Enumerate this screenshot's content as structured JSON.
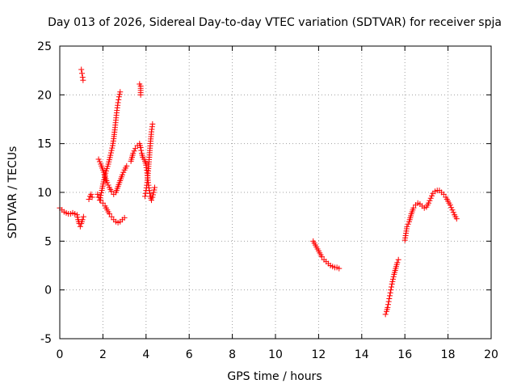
{
  "chart_data": {
    "type": "scatter",
    "title": "Day 013 of 2026, Sidereal Day-to-day VTEC variation (SDTVAR) for receiver spja",
    "xlabel": "GPS time / hours",
    "ylabel": "SDTVAR / TECUs",
    "xlim": [
      0,
      20
    ],
    "ylim": [
      -5,
      25
    ],
    "xticks": [
      0,
      2,
      4,
      6,
      8,
      10,
      12,
      14,
      16,
      18,
      20
    ],
    "yticks": [
      -5,
      0,
      5,
      10,
      15,
      20,
      25
    ],
    "xtick_labels": [
      "0",
      "2",
      "4",
      "6",
      "8",
      "10",
      "12",
      "14",
      "16",
      "18",
      "20"
    ],
    "ytick_labels": [
      "-5",
      "0",
      "5",
      "10",
      "15",
      "20",
      "25"
    ],
    "grid": true,
    "marker": "+",
    "color": "#ff0000",
    "series": [
      {
        "name": "seg-a",
        "points": [
          [
            0.0,
            8.4
          ],
          [
            0.1,
            8.2
          ],
          [
            0.2,
            8.0
          ],
          [
            0.3,
            7.9
          ],
          [
            0.4,
            7.8
          ],
          [
            0.5,
            7.8
          ],
          [
            0.6,
            7.9
          ],
          [
            0.7,
            7.8
          ],
          [
            0.8,
            7.7
          ],
          [
            0.85,
            7.2
          ],
          [
            0.9,
            6.8
          ],
          [
            0.95,
            6.5
          ],
          [
            1.0,
            6.8
          ],
          [
            1.05,
            7.2
          ],
          [
            1.1,
            7.5
          ]
        ]
      },
      {
        "name": "seg-b",
        "points": [
          [
            1.0,
            22.6
          ],
          [
            1.03,
            22.2
          ],
          [
            1.06,
            21.8
          ],
          [
            1.08,
            21.5
          ]
        ]
      },
      {
        "name": "seg-c",
        "points": [
          [
            1.35,
            9.3
          ],
          [
            1.4,
            9.6
          ],
          [
            1.45,
            9.8
          ],
          [
            1.5,
            9.5
          ]
        ]
      },
      {
        "name": "seg-d",
        "points": [
          [
            1.75,
            9.8
          ],
          [
            1.8,
            9.5
          ],
          [
            1.9,
            9.2
          ],
          [
            2.0,
            8.9
          ],
          [
            2.1,
            8.6
          ],
          [
            2.2,
            8.2
          ],
          [
            2.3,
            7.8
          ],
          [
            2.4,
            7.5
          ],
          [
            2.5,
            7.2
          ],
          [
            2.6,
            7.0
          ],
          [
            2.7,
            6.9
          ],
          [
            2.8,
            7.0
          ],
          [
            2.9,
            7.2
          ],
          [
            3.0,
            7.4
          ]
        ]
      },
      {
        "name": "seg-e",
        "points": [
          [
            1.8,
            13.4
          ],
          [
            1.9,
            12.9
          ],
          [
            2.0,
            12.3
          ],
          [
            2.1,
            11.6
          ],
          [
            2.2,
            11.0
          ],
          [
            2.3,
            10.5
          ],
          [
            2.4,
            10.1
          ],
          [
            2.5,
            9.8
          ],
          [
            2.6,
            10.0
          ],
          [
            2.7,
            10.6
          ],
          [
            2.8,
            11.2
          ],
          [
            2.9,
            11.8
          ],
          [
            3.0,
            12.3
          ],
          [
            3.1,
            12.7
          ]
        ]
      },
      {
        "name": "seg-f",
        "points": [
          [
            1.85,
            9.2
          ],
          [
            1.95,
            10.2
          ],
          [
            2.05,
            11.3
          ],
          [
            2.15,
            12.2
          ],
          [
            2.25,
            12.9
          ],
          [
            2.35,
            13.8
          ],
          [
            2.45,
            14.8
          ],
          [
            2.5,
            15.5
          ],
          [
            2.55,
            16.4
          ],
          [
            2.6,
            17.4
          ],
          [
            2.65,
            18.4
          ],
          [
            2.7,
            19.2
          ],
          [
            2.75,
            19.8
          ],
          [
            2.8,
            20.3
          ]
        ]
      },
      {
        "name": "seg-g",
        "points": [
          [
            3.3,
            13.2
          ],
          [
            3.4,
            14.0
          ],
          [
            3.5,
            14.5
          ],
          [
            3.6,
            14.8
          ],
          [
            3.7,
            15.0
          ],
          [
            3.75,
            14.6
          ],
          [
            3.8,
            14.0
          ],
          [
            3.85,
            13.6
          ],
          [
            3.9,
            13.4
          ],
          [
            3.95,
            13.2
          ],
          [
            4.0,
            12.8
          ],
          [
            4.05,
            12.0
          ],
          [
            4.1,
            11.0
          ],
          [
            4.15,
            10.2
          ],
          [
            4.2,
            9.6
          ],
          [
            4.25,
            9.2
          ],
          [
            4.3,
            9.5
          ],
          [
            4.35,
            10.0
          ],
          [
            4.4,
            10.5
          ]
        ]
      },
      {
        "name": "seg-h",
        "points": [
          [
            3.7,
            21.1
          ],
          [
            3.75,
            20.9
          ],
          [
            3.75,
            20.0
          ]
        ]
      },
      {
        "name": "seg-i",
        "points": [
          [
            3.95,
            9.6
          ],
          [
            4.0,
            10.2
          ],
          [
            4.05,
            11.0
          ],
          [
            4.1,
            12.2
          ],
          [
            4.15,
            13.6
          ],
          [
            4.2,
            15.0
          ],
          [
            4.25,
            16.2
          ],
          [
            4.3,
            17.0
          ]
        ]
      },
      {
        "name": "seg-j",
        "points": [
          [
            11.75,
            5.0
          ],
          [
            11.85,
            4.6
          ],
          [
            11.95,
            4.2
          ],
          [
            12.05,
            3.8
          ],
          [
            12.15,
            3.4
          ],
          [
            12.25,
            3.1
          ],
          [
            12.35,
            2.9
          ],
          [
            12.45,
            2.7
          ],
          [
            12.55,
            2.5
          ],
          [
            12.65,
            2.4
          ],
          [
            12.75,
            2.3
          ],
          [
            12.85,
            2.3
          ],
          [
            12.95,
            2.2
          ]
        ]
      },
      {
        "name": "seg-k",
        "points": [
          [
            15.1,
            -2.5
          ],
          [
            15.15,
            -2.2
          ],
          [
            15.2,
            -1.8
          ],
          [
            15.25,
            -1.2
          ],
          [
            15.3,
            -0.6
          ],
          [
            15.35,
            0.0
          ],
          [
            15.4,
            0.6
          ],
          [
            15.45,
            1.1
          ],
          [
            15.5,
            1.6
          ],
          [
            15.55,
            2.0
          ],
          [
            15.6,
            2.4
          ],
          [
            15.65,
            2.8
          ],
          [
            15.7,
            3.1
          ]
        ]
      },
      {
        "name": "seg-l",
        "points": [
          [
            16.0,
            5.1
          ],
          [
            16.05,
            5.8
          ],
          [
            16.1,
            6.5
          ],
          [
            16.2,
            7.0
          ],
          [
            16.3,
            7.8
          ],
          [
            16.4,
            8.4
          ],
          [
            16.5,
            8.7
          ],
          [
            16.6,
            8.9
          ],
          [
            16.7,
            8.8
          ],
          [
            16.8,
            8.6
          ],
          [
            16.9,
            8.4
          ],
          [
            17.0,
            8.5
          ],
          [
            17.1,
            8.9
          ],
          [
            17.2,
            9.4
          ],
          [
            17.3,
            9.9
          ],
          [
            17.4,
            10.1
          ],
          [
            17.5,
            10.2
          ],
          [
            17.6,
            10.2
          ],
          [
            17.7,
            10.0
          ],
          [
            17.8,
            9.8
          ],
          [
            17.9,
            9.5
          ],
          [
            18.0,
            9.1
          ],
          [
            18.1,
            8.7
          ],
          [
            18.2,
            8.2
          ],
          [
            18.3,
            7.7
          ],
          [
            18.4,
            7.3
          ]
        ]
      }
    ]
  }
}
